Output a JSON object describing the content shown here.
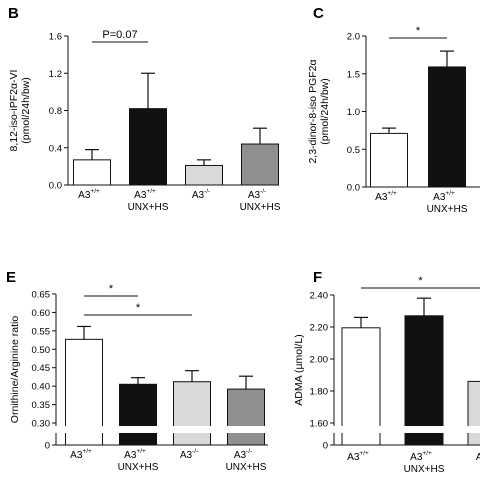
{
  "chart_data": [
    {
      "panel": "B",
      "type": "bar",
      "ylabel": [
        "8,12-iso-iPF2α-VI",
        "(pmol/24h/bw)"
      ],
      "yticks": [
        0.0,
        0.4,
        0.8,
        1.2,
        1.6
      ],
      "ylim": [
        0,
        1.6
      ],
      "categories": [
        {
          "main": "A3",
          "sup": "+/+",
          "sub": ""
        },
        {
          "main": "A3",
          "sup": "+/+",
          "sub": "UNX+HS"
        },
        {
          "main": "A3",
          "sup": "-/-",
          "sub": ""
        },
        {
          "main": "A3",
          "sup": "-/-",
          "sub": "UNX+HS"
        }
      ],
      "values": [
        0.27,
        0.82,
        0.21,
        0.44
      ],
      "errors": [
        0.11,
        0.38,
        0.06,
        0.17
      ],
      "fills": [
        "#ffffff",
        "#111111",
        "#d9d9d9",
        "#8f8f8f"
      ],
      "annotations": [
        {
          "text": "P=0.07",
          "from": 0,
          "to": 1
        }
      ]
    },
    {
      "panel": "C",
      "type": "bar",
      "ylabel": [
        "2,3-dinor-8-iso PGF2α",
        "(pmol/24h/bw)"
      ],
      "yticks": [
        0.0,
        0.5,
        1.0,
        1.5,
        2.0
      ],
      "ylim": [
        0,
        2.0
      ],
      "categories": [
        {
          "main": "A3",
          "sup": "+/+",
          "sub": ""
        },
        {
          "main": "A3",
          "sup": "+/+",
          "sub": "UNX+HS"
        }
      ],
      "values": [
        0.71,
        1.59
      ],
      "errors": [
        0.07,
        0.21
      ],
      "fills": [
        "#ffffff",
        "#111111"
      ],
      "annotations": [
        {
          "text": "*",
          "from": 0,
          "to": 1
        }
      ]
    },
    {
      "panel": "E",
      "type": "bar",
      "ylabel": [
        "Ornithine/Arginine ratio"
      ],
      "yticks": [
        0.3,
        0.35,
        0.4,
        0.45,
        0.5,
        0.55,
        0.6,
        0.65
      ],
      "ytick_labels": [
        "0.30",
        "0.35",
        "0.40",
        "0.45",
        "0.50",
        "0.55",
        "0.60",
        "0.65"
      ],
      "below_break_tick": "0",
      "ylim": [
        0.3,
        0.65
      ],
      "categories": [
        {
          "main": "A3",
          "sup": "+/+",
          "sub": ""
        },
        {
          "main": "A3",
          "sup": "+/+",
          "sub": "UNX+HS"
        },
        {
          "main": "A3",
          "sup": "-/-",
          "sub": ""
        },
        {
          "main": "A3",
          "sup": "-/-",
          "sub": "UNX+HS"
        }
      ],
      "values": [
        0.527,
        0.405,
        0.412,
        0.392
      ],
      "errors": [
        0.035,
        0.018,
        0.03,
        0.035
      ],
      "fills": [
        "#ffffff",
        "#111111",
        "#d9d9d9",
        "#8f8f8f"
      ],
      "annotations": [
        {
          "text": "*",
          "from": 0,
          "to": 1
        },
        {
          "text": "*",
          "from": 0,
          "to": 2
        }
      ]
    },
    {
      "panel": "F",
      "type": "bar",
      "ylabel": [
        "ADMA (µmol/L)"
      ],
      "yticks": [
        1.6,
        1.8,
        2.0,
        2.2,
        2.4
      ],
      "ytick_labels": [
        "1.60",
        "1.80",
        "2.00",
        "2.20",
        "2.40"
      ],
      "below_break_tick": "0",
      "ylim": [
        1.6,
        2.4
      ],
      "categories": [
        {
          "main": "A3",
          "sup": "+/+",
          "sub": ""
        },
        {
          "main": "A3",
          "sup": "+/+",
          "sub": "UNX+HS"
        },
        {
          "main": "A3",
          "sup": "-/",
          "sub": ""
        }
      ],
      "values": [
        2.195,
        2.27,
        1.86
      ],
      "errors": [
        0.065,
        0.11,
        0.11
      ],
      "fills": [
        "#ffffff",
        "#111111",
        "#d9d9d9"
      ],
      "annotations": [
        {
          "text": "*",
          "from": 0,
          "to": 2
        }
      ]
    }
  ]
}
